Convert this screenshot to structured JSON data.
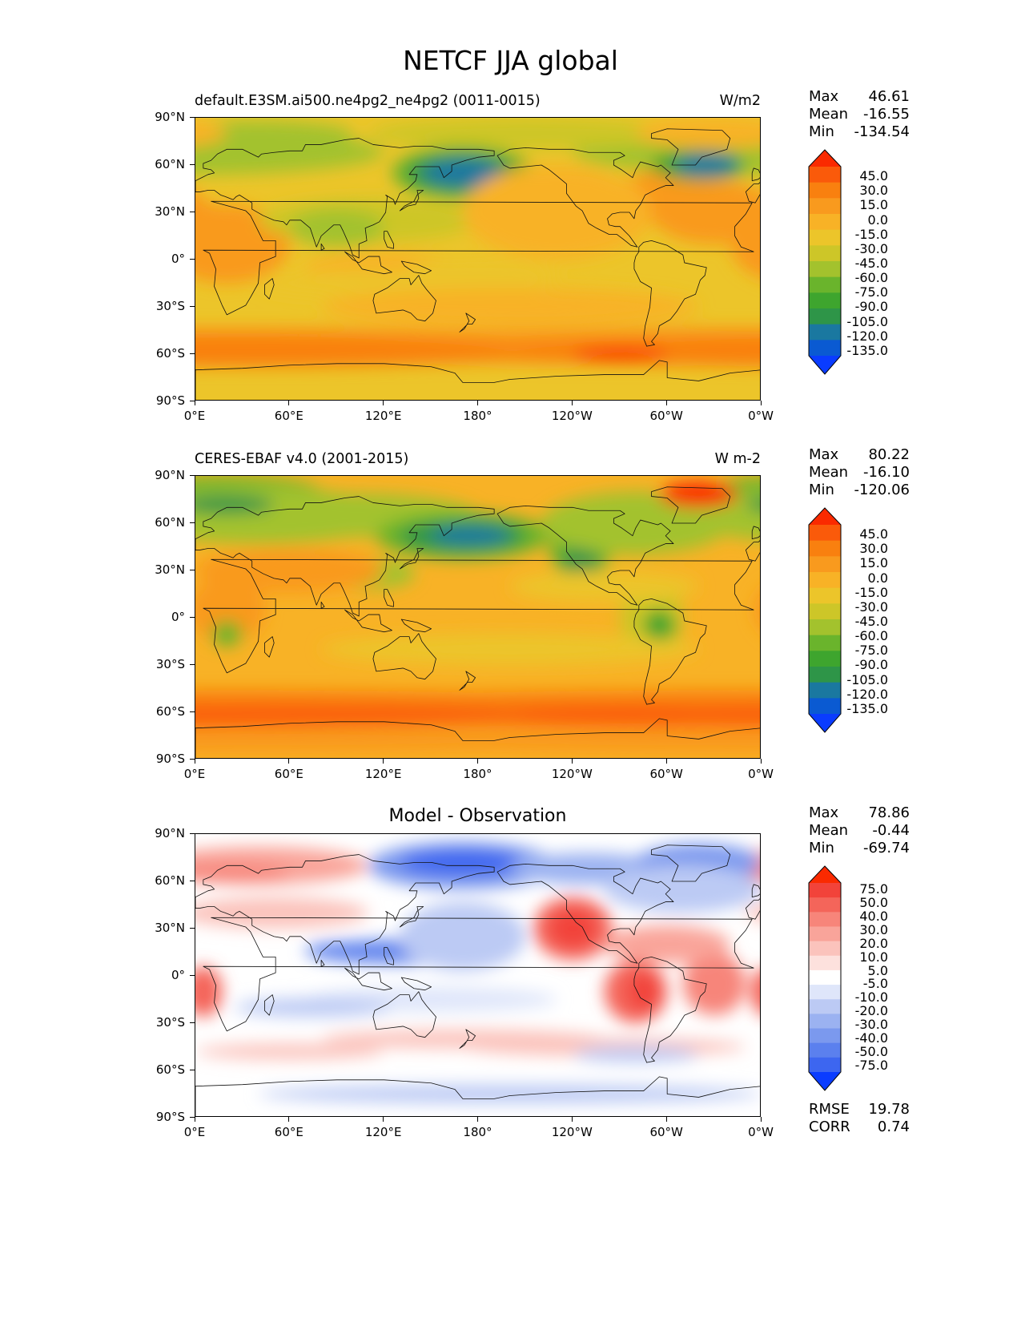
{
  "figure_title": "NETCF JJA global",
  "x_ticks": [
    "0°E",
    "60°E",
    "120°E",
    "180°",
    "120°W",
    "60°W",
    "0°W"
  ],
  "y_ticks": [
    "90°N",
    "60°N",
    "30°N",
    "0°",
    "30°S",
    "60°S",
    "90°S"
  ],
  "panels": [
    {
      "title": "default.E3SM.ai500.ne4pg2_ne4pg2 (0011-0015)",
      "units": "W/m2",
      "stats": {
        "max_label": "Max",
        "max": "46.61",
        "mean_label": "Mean",
        "mean": "-16.55",
        "min_label": "Min",
        "min": "-134.54"
      },
      "colorbar_labels": [
        "45.0",
        "30.0",
        "15.0",
        "0.0",
        "-15.0",
        "-30.0",
        "-45.0",
        "-60.0",
        "-75.0",
        "-90.0",
        "-105.0",
        "-120.0",
        "-135.0"
      ]
    },
    {
      "title": "CERES-EBAF v4.0 (2001-2015)",
      "units": "W m-2",
      "stats": {
        "max_label": "Max",
        "max": "80.22",
        "mean_label": "Mean",
        "mean": "-16.10",
        "min_label": "Min",
        "min": "-120.06"
      },
      "colorbar_labels": [
        "45.0",
        "30.0",
        "15.0",
        "0.0",
        "-15.0",
        "-30.0",
        "-45.0",
        "-60.0",
        "-75.0",
        "-90.0",
        "-105.0",
        "-120.0",
        "-135.0"
      ]
    },
    {
      "title": "Model - Observation",
      "units": "",
      "stats": {
        "max_label": "Max",
        "max": "78.86",
        "mean_label": "Mean",
        "mean": "-0.44",
        "min_label": "Min",
        "min": "-69.74"
      },
      "colorbar_labels": [
        "75.0",
        "50.0",
        "40.0",
        "30.0",
        "20.0",
        "10.0",
        "5.0",
        "-5.0",
        "-10.0",
        "-20.0",
        "-30.0",
        "-40.0",
        "-50.0",
        "-75.0"
      ],
      "metrics": {
        "rmse_label": "RMSE",
        "rmse": "19.78",
        "corr_label": "CORR",
        "corr": "0.74"
      }
    }
  ],
  "colors": {
    "netcf_scale": [
      "#0a3cff",
      "#0a5ad2",
      "#1a78a0",
      "#2e9548",
      "#3ea52e",
      "#6ab42c",
      "#a3c22d",
      "#cdc628",
      "#ecc52a",
      "#f8b226",
      "#f99a1e",
      "#f9800f",
      "#fa5a0a",
      "#fa2a00"
    ],
    "diff_scale": [
      "#0a3cff",
      "#3d66f0",
      "#5b80ee",
      "#7b99ee",
      "#9bb2f1",
      "#bccaf4",
      "#dfe6fa",
      "#ffffff",
      "#fde1dd",
      "#fbc3bc",
      "#f9a49a",
      "#f7857a",
      "#f4655a",
      "#f2433a",
      "#fa2a00"
    ]
  }
}
